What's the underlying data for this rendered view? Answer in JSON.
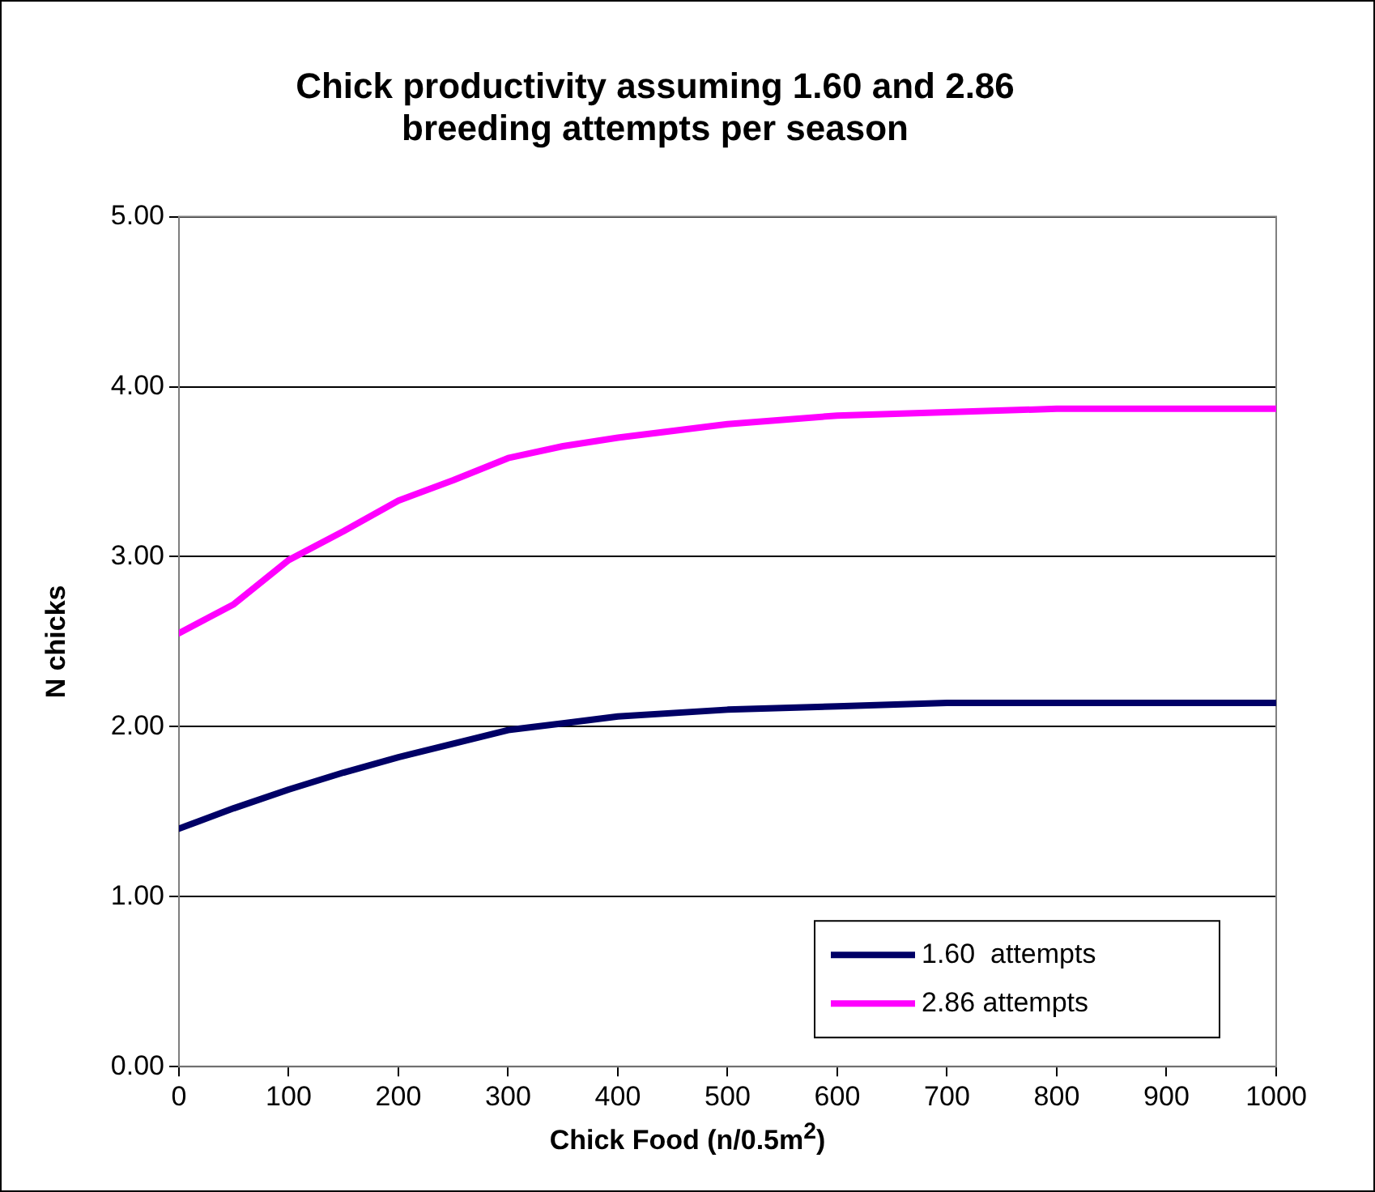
{
  "chart_data": {
    "type": "line",
    "title": "Chick productivity assuming 1.60 and 2.86\nbreeding attempts per season",
    "xlabel": "Chick Food (n/0.5m$^{2}$)",
    "ylabel": "N chicks",
    "x": [
      0,
      50,
      100,
      150,
      200,
      250,
      300,
      350,
      400,
      500,
      600,
      700,
      800,
      900,
      1000
    ],
    "series": [
      {
        "name": "1.60  attempts",
        "color": "#000066",
        "values": [
          1.4,
          1.52,
          1.63,
          1.73,
          1.82,
          1.9,
          1.98,
          2.02,
          2.06,
          2.1,
          2.12,
          2.14,
          2.14,
          2.14,
          2.14
        ]
      },
      {
        "name": "2.86 attempts",
        "color": "#ff00ff",
        "values": [
          2.55,
          2.72,
          2.98,
          3.15,
          3.33,
          3.45,
          3.58,
          3.65,
          3.7,
          3.78,
          3.83,
          3.85,
          3.87,
          3.87,
          3.87
        ]
      }
    ],
    "xlim": [
      0,
      1000
    ],
    "xticks": [
      0,
      100,
      200,
      300,
      400,
      500,
      600,
      700,
      800,
      900,
      1000
    ],
    "ylim": [
      0,
      5
    ],
    "yticks": [
      {
        "value": 0,
        "label": "0.00"
      },
      {
        "value": 1,
        "label": "1.00"
      },
      {
        "value": 2,
        "label": "2.00"
      },
      {
        "value": 3,
        "label": "3.00"
      },
      {
        "value": 4,
        "label": "4.00"
      },
      {
        "value": 5,
        "label": "5.00"
      }
    ],
    "grid": "y",
    "legend": "bottom right",
    "marker": "none",
    "line_style": "solid"
  }
}
